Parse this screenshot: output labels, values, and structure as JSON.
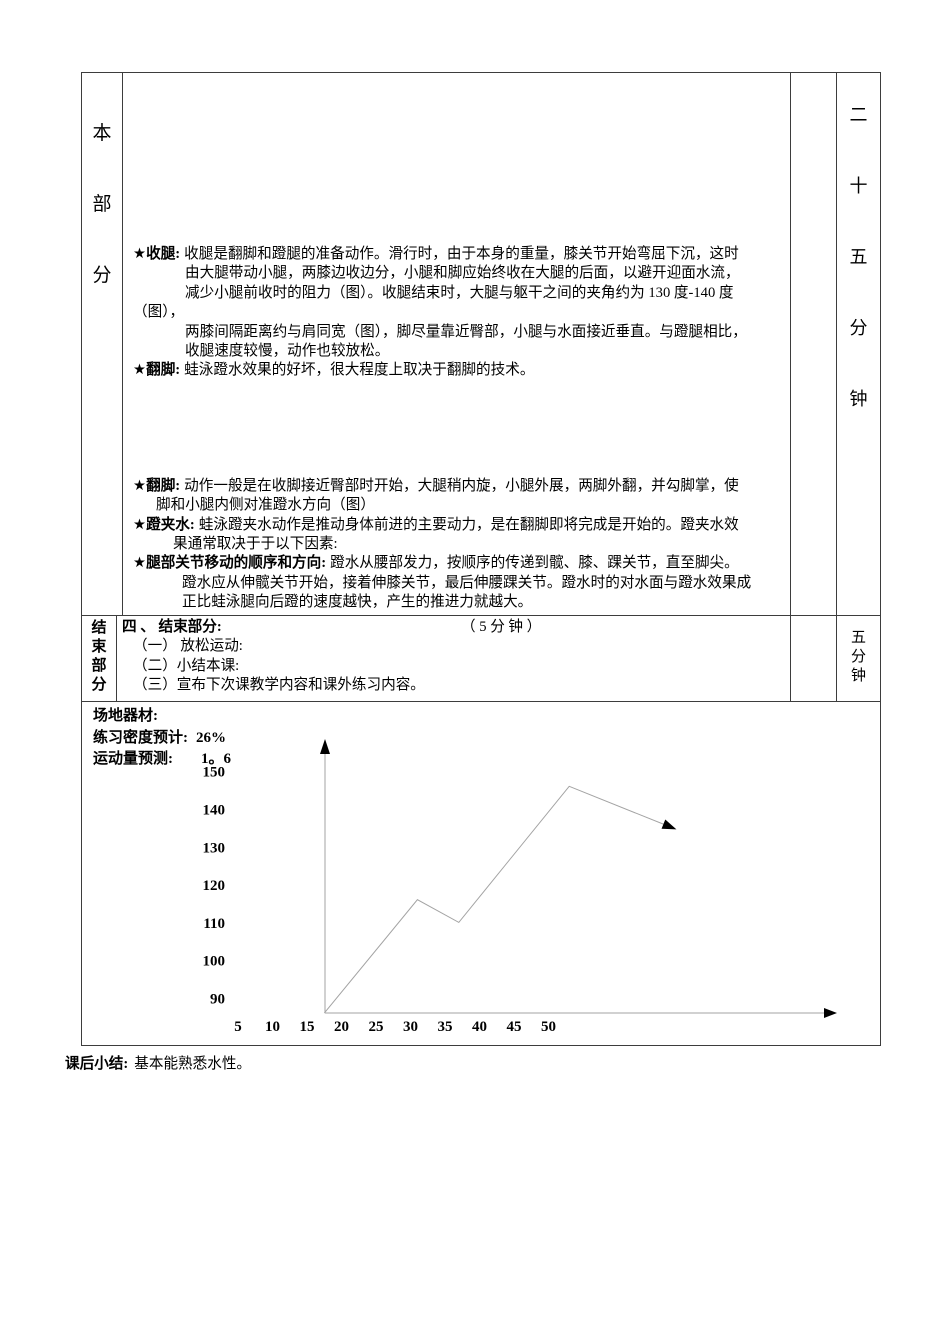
{
  "colors": {
    "text": "#000000",
    "table_border": "#3d3d3d",
    "axis_line": "#a3a3a3",
    "series_line": "#a3a3a3",
    "arrowhead": "#000000"
  },
  "main_section": {
    "label_chars": [
      "本",
      "部",
      "分"
    ],
    "duration_chars": [
      "二",
      "十",
      "五",
      "分",
      "钟"
    ],
    "block1": [
      {
        "star": "★",
        "term": "收腿:",
        "text": "收腿是翻脚和蹬腿的准备动作。滑行时，由于本身的重量，膝关节开始弯屈下沉，这时"
      },
      {
        "text": "由大腿带动小腿，两膝边收边分，小腿和脚应始终收在大腿的后面，以避开迎面水流，"
      },
      {
        "text": "减少小腿前收时的阻力（图）。收腿结束时，大腿与躯干之间的夹角约为 130 度-140 度"
      },
      {
        "text": "（图），"
      },
      {
        "text": "两膝间隔距离约与肩同宽（图），脚尽量靠近臀部，小腿与水面接近垂直。与蹬腿相比，"
      },
      {
        "text": "收腿速度较慢，动作也较放松。"
      },
      {
        "star": "★",
        "term": "翻脚:",
        "text": "蛙泳蹬水效果的好坏，很大程度上取决于翻脚的技术。"
      }
    ],
    "block2": [
      {
        "star": "★",
        "term": "翻脚:",
        "text": "动作一般是在收脚接近臀部时开始，大腿稍内旋，小腿外展，两脚外翻，并勾脚掌，使"
      },
      {
        "text": "脚和小腿内侧对准蹬水方向（图）"
      },
      {
        "star": "★",
        "term": "蹬夹水:",
        "text": "蛙泳蹬夹水动作是推动身体前进的主要动力，是在翻脚即将完成是开始的。蹬夹水效"
      },
      {
        "text": "果通常取决于于以下因素:"
      },
      {
        "star": "★",
        "term": "腿部关节移动的顺序和方向:",
        "text": "蹬水从腰部发力，按顺序的传递到髋、膝、踝关节，直至脚尖。"
      },
      {
        "text": "蹬水应从伸髋关节开始，接着伸膝关节，最后伸腰踝关节。蹬水时的对水面与蹬水效果成"
      },
      {
        "text": "正比蛙泳腿向后蹬的速度越快，产生的推进力就越大。"
      }
    ]
  },
  "end_section": {
    "label_chars": [
      "结",
      "束",
      "部",
      "分"
    ],
    "duration_chars": [
      "五",
      "分",
      "钟"
    ],
    "heading": "四 、 结束部分:",
    "heading_time": "（ 5 分 钟 ）",
    "items": [
      "（一） 放松运动:",
      "（二）小结本课:",
      "（三）宣布下次课教学内容和课外练习内容。"
    ]
  },
  "equipment_section": {
    "venue_label": "场地器材:",
    "density_label": "练习密度预计:",
    "density_value": "26%",
    "load_label": "运动量预测:",
    "load_value": "1。6"
  },
  "after_class": {
    "label": "课后小结:",
    "text": "基本能熟悉水性。"
  },
  "chart_data": {
    "type": "line",
    "title": "",
    "xlabel": "",
    "ylabel": "",
    "x_ticks": [
      5,
      10,
      15,
      20,
      25,
      30,
      35,
      40,
      45,
      50
    ],
    "y_ticks": [
      150,
      140,
      130,
      120,
      110,
      100,
      90
    ],
    "y_range_shown": [
      90,
      150
    ],
    "x_range_shown": [
      5,
      50
    ],
    "grid": false,
    "legend": false,
    "axis_arrows": true,
    "series_end_arrow": true,
    "points": [
      {
        "x": 17.5,
        "y": 86
      },
      {
        "x": 31,
        "y": 116
      },
      {
        "x": 37,
        "y": 110
      },
      {
        "x": 53,
        "y": 146
      },
      {
        "x": 68,
        "y": 135
      }
    ]
  }
}
